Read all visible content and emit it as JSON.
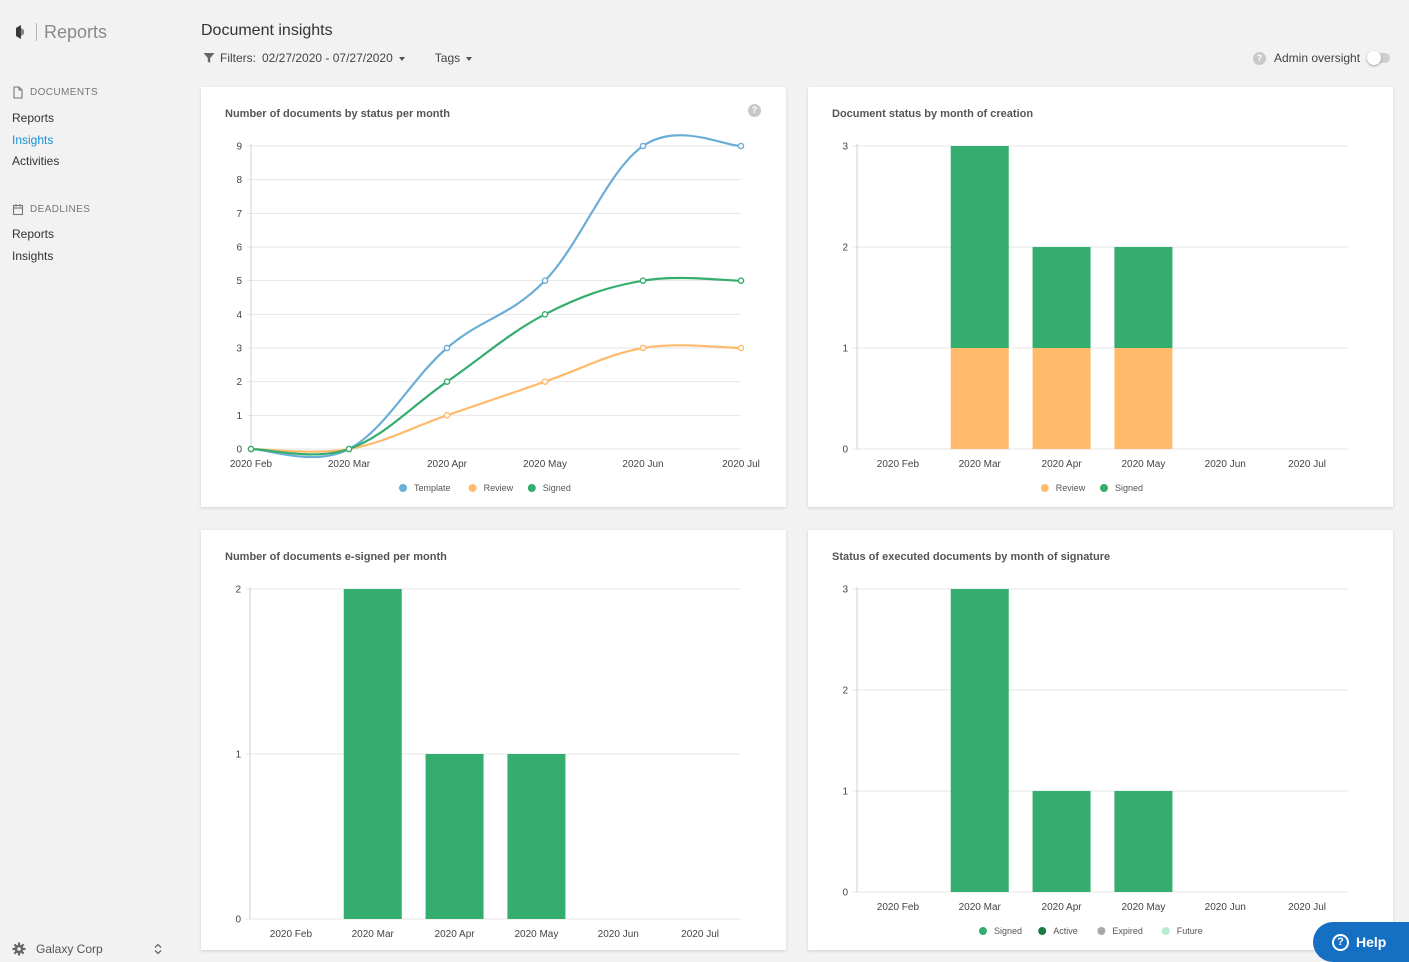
{
  "brand": {
    "title": "Reports"
  },
  "sidebar": {
    "sections": [
      {
        "label": "DOCUMENTS",
        "items": [
          "Reports",
          "Insights",
          "Activities"
        ]
      },
      {
        "label": "DEADLINES",
        "items": [
          "Reports",
          "Insights"
        ]
      }
    ],
    "active_item": "Insights",
    "org_name": "Galaxy Corp"
  },
  "header": {
    "title": "Document insights",
    "filters_label": "Filters:",
    "date_range": "02/27/2020 - 07/27/2020",
    "tags_label": "Tags",
    "admin_oversight_label": "Admin oversight",
    "admin_oversight_on": false
  },
  "help_button": {
    "label": "Help"
  },
  "colors": {
    "template": "#6aaed6",
    "review": "#ffbb6b",
    "signed": "#35ad6e",
    "active": "#1b7d43",
    "expired": "#a9a9a9",
    "future": "#b7edcd",
    "accent": "#1a8fd6"
  },
  "chart_data": [
    {
      "type": "line",
      "title": "Number of documents by status per month",
      "categories": [
        "2020 Feb",
        "2020 Mar",
        "2020 Apr",
        "2020 May",
        "2020 Jun",
        "2020 Jul"
      ],
      "ylim": [
        0,
        9
      ],
      "yticks": [
        0,
        1,
        2,
        3,
        4,
        5,
        6,
        7,
        8,
        9
      ],
      "legend_position": "bottom",
      "series": [
        {
          "name": "Template",
          "values": [
            0,
            0,
            3,
            5,
            9,
            9
          ],
          "color": "#6aaed6"
        },
        {
          "name": "Review",
          "values": [
            0,
            0,
            1,
            2,
            3,
            3
          ],
          "color": "#ffbb6b"
        },
        {
          "name": "Signed",
          "values": [
            0,
            0,
            2,
            4,
            5,
            5
          ],
          "color": "#35ad6e"
        }
      ]
    },
    {
      "type": "bar",
      "stacked": true,
      "title": "Document status by month of creation",
      "categories": [
        "2020 Feb",
        "2020 Mar",
        "2020 Apr",
        "2020 May",
        "2020 Jun",
        "2020 Jul"
      ],
      "ylim": [
        0,
        3
      ],
      "yticks": [
        0,
        1,
        2,
        3
      ],
      "legend_position": "bottom",
      "series": [
        {
          "name": "Review",
          "values": [
            0,
            1,
            1,
            1,
            0,
            0
          ],
          "color": "#ffbb6b"
        },
        {
          "name": "Signed",
          "values": [
            0,
            2,
            1,
            1,
            0,
            0
          ],
          "color": "#35ad6e"
        }
      ]
    },
    {
      "type": "bar",
      "title": "Number of documents e-signed per month",
      "categories": [
        "2020 Feb",
        "2020 Mar",
        "2020 Apr",
        "2020 May",
        "2020 Jun",
        "2020 Jul"
      ],
      "ylim": [
        0,
        2
      ],
      "yticks": [
        0,
        1,
        2
      ],
      "legend_position": "none",
      "series": [
        {
          "name": "",
          "values": [
            0,
            2,
            1,
            1,
            0,
            0
          ],
          "color": "#35ad6e"
        }
      ]
    },
    {
      "type": "bar",
      "stacked": true,
      "title": "Status of executed documents by month of signature",
      "categories": [
        "2020 Feb",
        "2020 Mar",
        "2020 Apr",
        "2020 May",
        "2020 Jun",
        "2020 Jul"
      ],
      "ylim": [
        0,
        3
      ],
      "yticks": [
        0,
        1,
        2,
        3
      ],
      "legend_position": "bottom",
      "series": [
        {
          "name": "Signed",
          "values": [
            0,
            3,
            1,
            1,
            0,
            0
          ],
          "color": "#35ad6e"
        },
        {
          "name": "Active",
          "values": [
            0,
            0,
            0,
            0,
            0,
            0
          ],
          "color": "#1b7d43"
        },
        {
          "name": "Expired",
          "values": [
            0,
            0,
            0,
            0,
            0,
            0
          ],
          "color": "#a9a9a9"
        },
        {
          "name": "Future",
          "values": [
            0,
            0,
            0,
            0,
            0,
            0
          ],
          "color": "#b7edcd"
        }
      ]
    }
  ]
}
